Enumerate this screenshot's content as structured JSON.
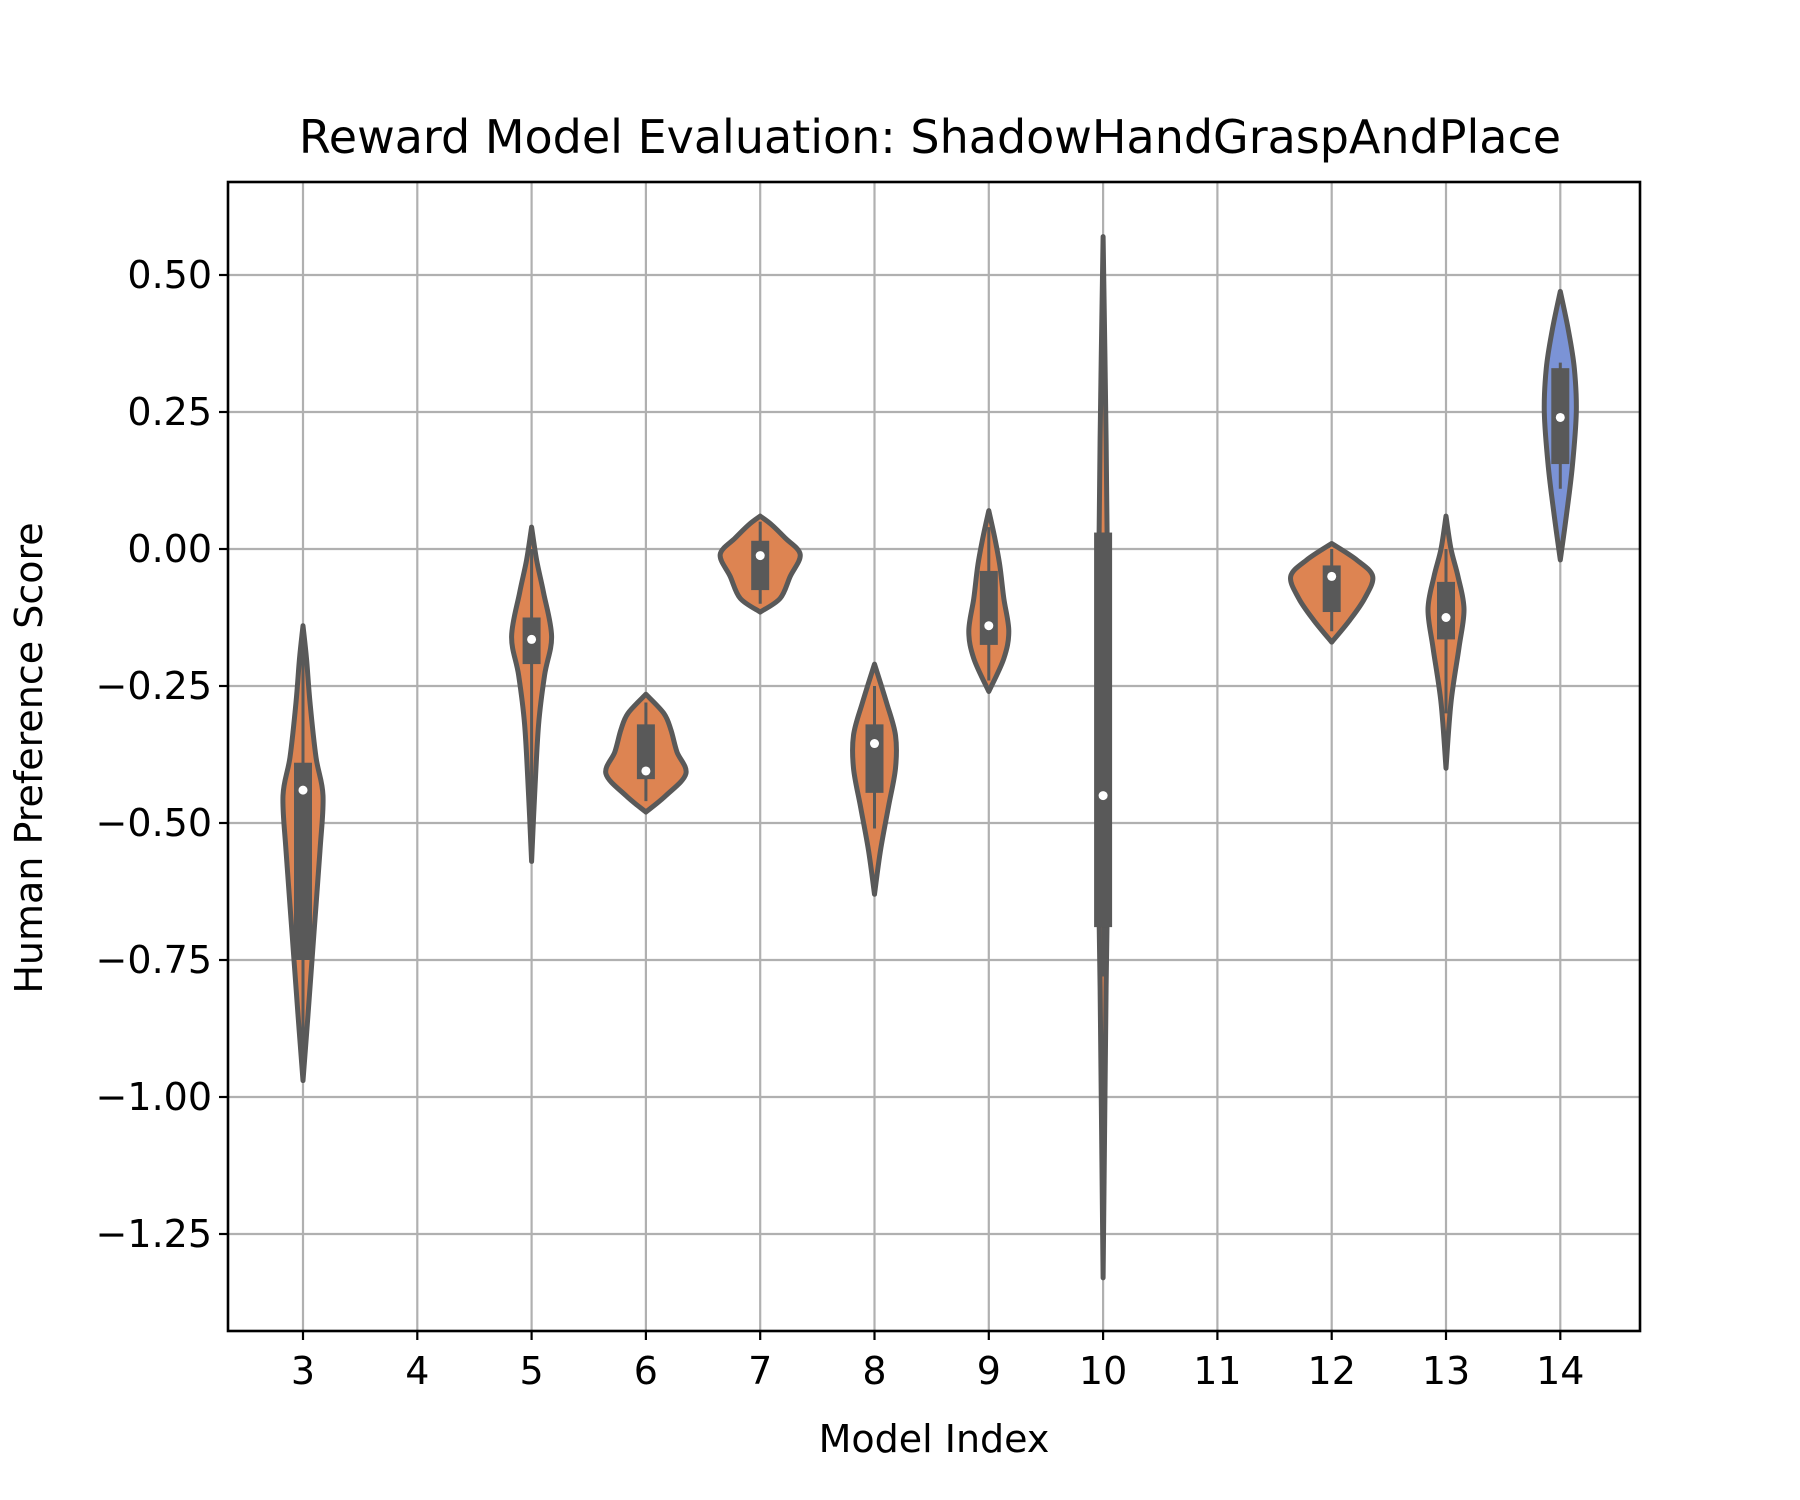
{
  "chart_data": {
    "type": "violin",
    "title": "Reward Model Evaluation: ShadowHandGraspAndPlace",
    "xlabel": "Model Index",
    "ylabel": "Human Preference Score",
    "ylim": [
      -1.42,
      0.67
    ],
    "yticks": [
      0.5,
      0.25,
      0.0,
      -0.25,
      -0.5,
      -0.75,
      -1.0,
      -1.25
    ],
    "ytick_labels": [
      "0.50",
      "0.25",
      "0.00",
      "−0.25",
      "−0.50",
      "−0.75",
      "−1.00",
      "−1.25"
    ],
    "categories": [
      "3",
      "4",
      "5",
      "6",
      "7",
      "8",
      "9",
      "10",
      "11",
      "12",
      "13",
      "14"
    ],
    "grid": true,
    "colors": {
      "default": "#dd8452",
      "highlight": "#7b93d6",
      "edge": "#595959"
    },
    "violins": [
      {
        "category": "3",
        "min": -0.97,
        "max": -0.14,
        "q1": -0.75,
        "median": -0.44,
        "q3": -0.39,
        "whisker_low": -0.97,
        "whisker_high": -0.14,
        "profile": [
          [
            -0.97,
            0.0
          ],
          [
            -0.85,
            0.1
          ],
          [
            -0.7,
            0.22
          ],
          [
            -0.55,
            0.34
          ],
          [
            -0.45,
            0.4
          ],
          [
            -0.38,
            0.26
          ],
          [
            -0.28,
            0.14
          ],
          [
            -0.2,
            0.07
          ],
          [
            -0.14,
            0.0
          ]
        ],
        "color": "#dd8452"
      },
      {
        "category": "5",
        "min": -0.57,
        "max": 0.04,
        "q1": -0.21,
        "median": -0.165,
        "q3": -0.125,
        "whisker_low": -0.5,
        "whisker_high": 0.0,
        "profile": [
          [
            -0.57,
            0.0
          ],
          [
            -0.45,
            0.06
          ],
          [
            -0.32,
            0.14
          ],
          [
            -0.23,
            0.26
          ],
          [
            -0.16,
            0.4
          ],
          [
            -0.08,
            0.24
          ],
          [
            -0.02,
            0.1
          ],
          [
            0.04,
            0.0
          ]
        ],
        "color": "#dd8452"
      },
      {
        "category": "6",
        "min": -0.48,
        "max": -0.265,
        "q1": -0.42,
        "median": -0.405,
        "q3": -0.32,
        "whisker_low": -0.46,
        "whisker_high": -0.28,
        "profile": [
          [
            -0.48,
            0.0
          ],
          [
            -0.45,
            0.4
          ],
          [
            -0.41,
            0.8
          ],
          [
            -0.37,
            0.62
          ],
          [
            -0.33,
            0.5
          ],
          [
            -0.3,
            0.36
          ],
          [
            -0.265,
            0.0
          ]
        ],
        "color": "#dd8452"
      },
      {
        "category": "7",
        "min": -0.115,
        "max": 0.06,
        "q1": -0.075,
        "median": -0.012,
        "q3": 0.015,
        "whisker_low": -0.1,
        "whisker_high": 0.05,
        "profile": [
          [
            -0.115,
            0.0
          ],
          [
            -0.09,
            0.4
          ],
          [
            -0.05,
            0.6
          ],
          [
            -0.01,
            0.8
          ],
          [
            0.02,
            0.5
          ],
          [
            0.045,
            0.22
          ],
          [
            0.06,
            0.0
          ]
        ],
        "color": "#dd8452"
      },
      {
        "category": "8",
        "min": -0.63,
        "max": -0.21,
        "q1": -0.445,
        "median": -0.355,
        "q3": -0.32,
        "whisker_low": -0.51,
        "whisker_high": -0.25,
        "profile": [
          [
            -0.63,
            0.0
          ],
          [
            -0.55,
            0.12
          ],
          [
            -0.47,
            0.28
          ],
          [
            -0.4,
            0.42
          ],
          [
            -0.34,
            0.42
          ],
          [
            -0.28,
            0.24
          ],
          [
            -0.21,
            0.0
          ]
        ],
        "color": "#dd8452"
      },
      {
        "category": "9",
        "min": -0.26,
        "max": 0.07,
        "q1": -0.175,
        "median": -0.14,
        "q3": -0.04,
        "whisker_low": -0.24,
        "whisker_high": 0.04,
        "profile": [
          [
            -0.26,
            0.0
          ],
          [
            -0.2,
            0.3
          ],
          [
            -0.15,
            0.4
          ],
          [
            -0.09,
            0.3
          ],
          [
            -0.03,
            0.22
          ],
          [
            0.02,
            0.12
          ],
          [
            0.07,
            0.0
          ]
        ],
        "color": "#dd8452"
      },
      {
        "category": "10",
        "min": -1.33,
        "max": 0.57,
        "q1": -0.69,
        "median": -0.45,
        "q3": 0.03,
        "whisker_low": -0.78,
        "whisker_high": 0.03,
        "profile": [
          [
            -1.33,
            0.0
          ],
          [
            -0.8,
            0.06
          ],
          [
            -0.6,
            0.09
          ],
          [
            -0.4,
            0.09
          ],
          [
            -0.1,
            0.09
          ],
          [
            0.2,
            0.06
          ],
          [
            0.57,
            0.0
          ]
        ],
        "color": "#dd8452"
      },
      {
        "category": "12",
        "min": -0.17,
        "max": 0.01,
        "q1": -0.115,
        "median": -0.05,
        "q3": -0.03,
        "whisker_low": -0.15,
        "whisker_high": 0.0,
        "profile": [
          [
            -0.17,
            0.0
          ],
          [
            -0.13,
            0.36
          ],
          [
            -0.09,
            0.66
          ],
          [
            -0.05,
            0.82
          ],
          [
            -0.02,
            0.5
          ],
          [
            0.01,
            0.0
          ]
        ],
        "color": "#dd8452"
      },
      {
        "category": "13",
        "min": -0.4,
        "max": 0.06,
        "q1": -0.165,
        "median": -0.125,
        "q3": -0.06,
        "whisker_low": -0.3,
        "whisker_high": 0.0,
        "profile": [
          [
            -0.4,
            0.0
          ],
          [
            -0.28,
            0.1
          ],
          [
            -0.18,
            0.26
          ],
          [
            -0.11,
            0.36
          ],
          [
            -0.05,
            0.24
          ],
          [
            0.0,
            0.1
          ],
          [
            0.06,
            0.0
          ]
        ],
        "color": "#dd8452"
      },
      {
        "category": "14",
        "min": -0.02,
        "max": 0.47,
        "q1": 0.155,
        "median": 0.24,
        "q3": 0.33,
        "whisker_low": 0.11,
        "whisker_high": 0.34,
        "profile": [
          [
            -0.02,
            0.0
          ],
          [
            0.06,
            0.12
          ],
          [
            0.15,
            0.24
          ],
          [
            0.25,
            0.32
          ],
          [
            0.33,
            0.28
          ],
          [
            0.4,
            0.16
          ],
          [
            0.47,
            0.0
          ]
        ],
        "color": "#7b93d6"
      }
    ]
  }
}
